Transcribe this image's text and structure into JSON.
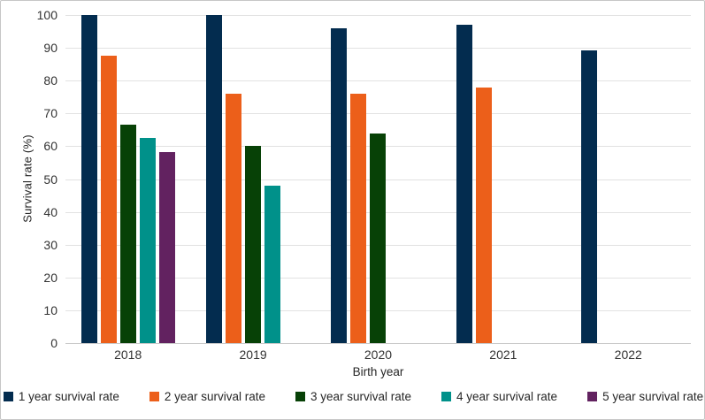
{
  "chart_data": {
    "type": "bar",
    "title": "",
    "xlabel": "Birth year",
    "ylabel": "Survival rate (%)",
    "categories": [
      "2018",
      "2019",
      "2020",
      "2021",
      "2022"
    ],
    "series": [
      {
        "name": "1 year survival rate",
        "color": "#032c4f",
        "values": [
          100,
          100,
          96,
          97,
          89.3
        ]
      },
      {
        "name": "2 year survival rate",
        "color": "#ec5f1a",
        "values": [
          87.5,
          76,
          76,
          77.8,
          null
        ]
      },
      {
        "name": "3 year survival rate",
        "color": "#074106",
        "values": [
          66.7,
          60,
          64,
          null,
          null
        ]
      },
      {
        "name": "4 year survival rate",
        "color": "#00918a",
        "values": [
          62.5,
          48,
          null,
          null,
          null
        ]
      },
      {
        "name": "5 year survival rate",
        "color": "#622260",
        "values": [
          58.3,
          null,
          null,
          null,
          null
        ]
      }
    ],
    "ylim": [
      0,
      100
    ],
    "ytick_step": 10,
    "grid": true,
    "legend_position": "bottom",
    "colors": {
      "gridline": "#e2e2e2",
      "axis_line": "#c9c9c9",
      "tick_text": "#333333",
      "title_text": "#262626",
      "frame_border": "#c6c6c6"
    }
  }
}
